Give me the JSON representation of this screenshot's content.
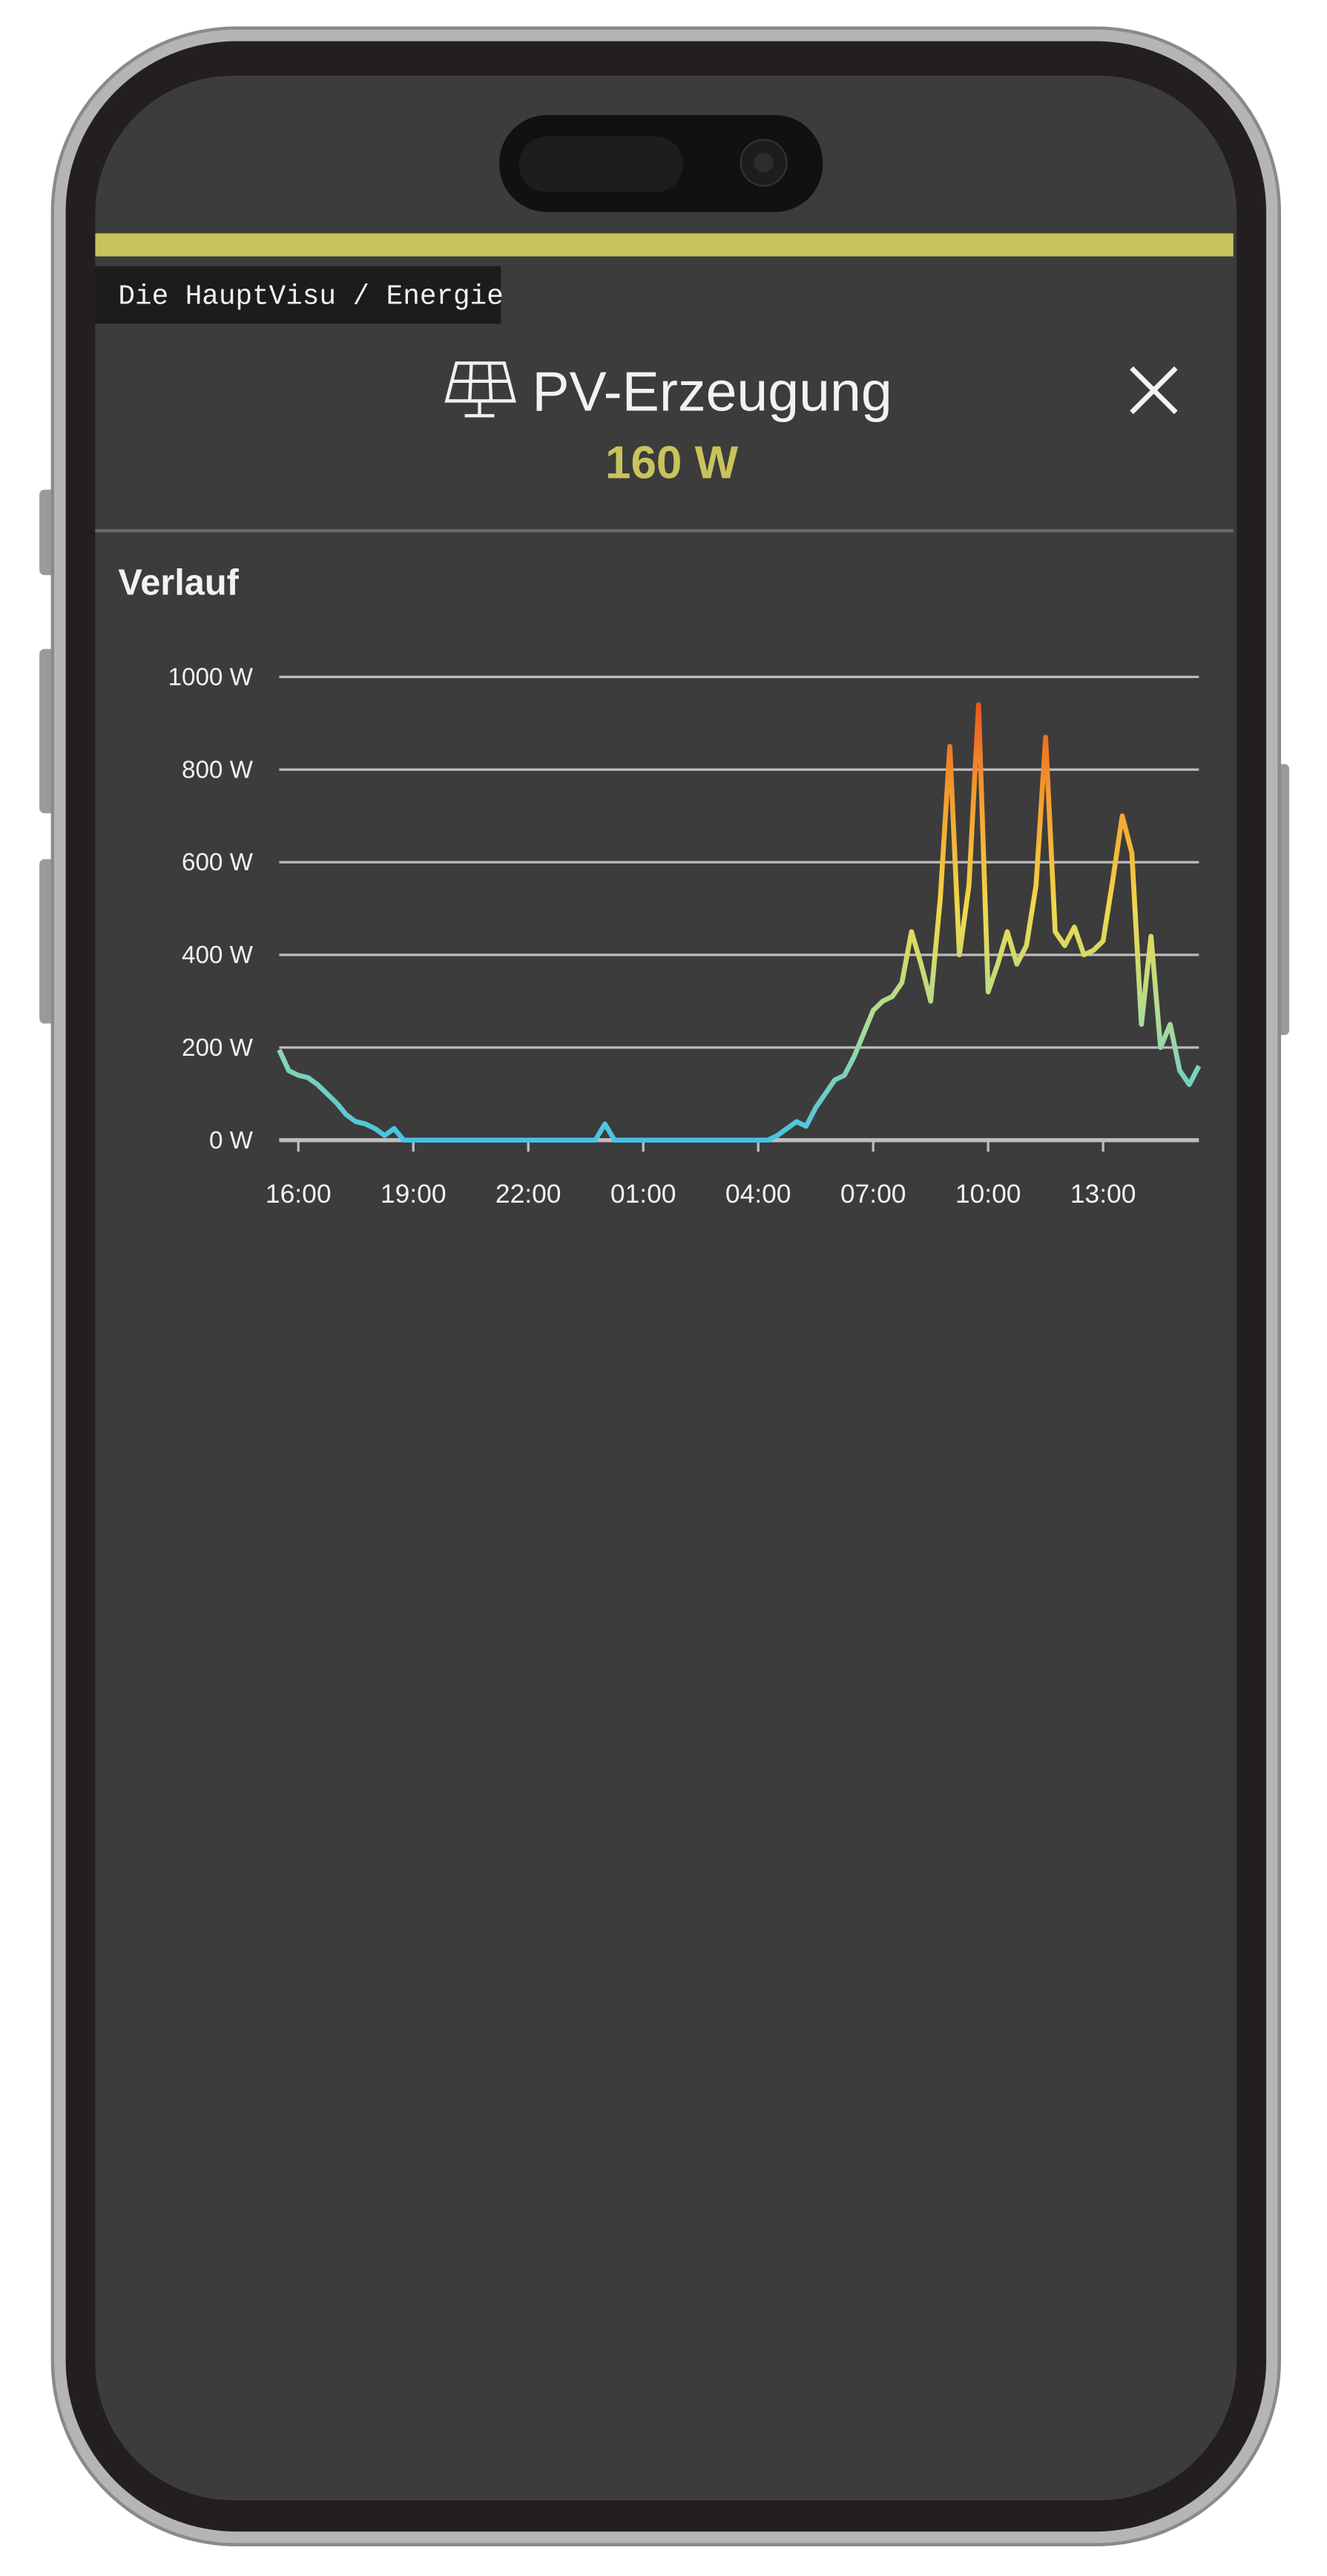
{
  "header": {
    "breadcrumb": "Die HauptVisu / Energie",
    "title": "PV-Erzeugung",
    "value": "160 W"
  },
  "section": {
    "title": "Verlauf"
  },
  "chart_data": {
    "type": "line",
    "x": [
      "15:30",
      "15:45",
      "16:00",
      "16:15",
      "16:30",
      "16:45",
      "17:00",
      "17:15",
      "17:30",
      "17:45",
      "18:00",
      "18:15",
      "18:30",
      "18:45",
      "19:00",
      "19:15",
      "19:30",
      "19:45",
      "20:00",
      "20:15",
      "20:30",
      "20:45",
      "21:00",
      "21:15",
      "21:30",
      "21:45",
      "22:00",
      "22:15",
      "22:30",
      "22:45",
      "23:00",
      "23:15",
      "23:30",
      "23:45",
      "00:00",
      "00:15",
      "00:30",
      "00:45",
      "01:00",
      "01:15",
      "01:30",
      "01:45",
      "02:00",
      "02:15",
      "02:30",
      "02:45",
      "03:00",
      "03:15",
      "03:30",
      "03:45",
      "04:00",
      "04:15",
      "04:30",
      "04:45",
      "05:00",
      "05:15",
      "05:30",
      "05:45",
      "06:00",
      "06:15",
      "06:30",
      "06:45",
      "07:00",
      "07:15",
      "07:30",
      "07:45",
      "08:00",
      "08:15",
      "08:30",
      "08:45",
      "09:00",
      "09:15",
      "09:30",
      "09:45",
      "10:00",
      "10:15",
      "10:30",
      "10:45",
      "11:00",
      "11:15",
      "11:30",
      "11:45",
      "12:00",
      "12:15",
      "12:30",
      "12:45",
      "13:00",
      "13:15",
      "13:30",
      "13:45",
      "14:00",
      "14:15",
      "14:30",
      "14:45",
      "15:00",
      "15:15",
      "15:30"
    ],
    "values": [
      195,
      150,
      140,
      135,
      120,
      100,
      80,
      55,
      40,
      35,
      25,
      10,
      25,
      0,
      0,
      0,
      0,
      0,
      0,
      0,
      0,
      0,
      0,
      0,
      0,
      0,
      0,
      0,
      0,
      0,
      0,
      0,
      0,
      0,
      35,
      0,
      0,
      0,
      0,
      0,
      0,
      0,
      0,
      0,
      0,
      0,
      0,
      0,
      0,
      0,
      0,
      0,
      10,
      25,
      40,
      30,
      70,
      100,
      130,
      140,
      180,
      230,
      280,
      300,
      310,
      340,
      450,
      380,
      300,
      520,
      850,
      400,
      550,
      940,
      320,
      380,
      450,
      380,
      420,
      550,
      870,
      450,
      420,
      460,
      400,
      410,
      430,
      560,
      700,
      620,
      250,
      440,
      200,
      250,
      150,
      120,
      160
    ],
    "xlim": [
      "15:30",
      "15:30"
    ],
    "xticks": [
      "16:00",
      "19:00",
      "22:00",
      "01:00",
      "04:00",
      "07:00",
      "10:00",
      "13:00"
    ],
    "ylim": [
      0,
      1000
    ],
    "yticks": [
      {
        "value": 0,
        "label": "0 W"
      },
      {
        "value": 200,
        "label": "200 W"
      },
      {
        "value": 400,
        "label": "400 W"
      },
      {
        "value": 600,
        "label": "600 W"
      },
      {
        "value": 800,
        "label": "800 W"
      },
      {
        "value": 1000,
        "label": "1000 W"
      }
    ],
    "grid": true,
    "color_scale": [
      "#45c3e6",
      "#a9dc9a",
      "#f2d84a",
      "#f49a2c",
      "#e8451c"
    ]
  }
}
